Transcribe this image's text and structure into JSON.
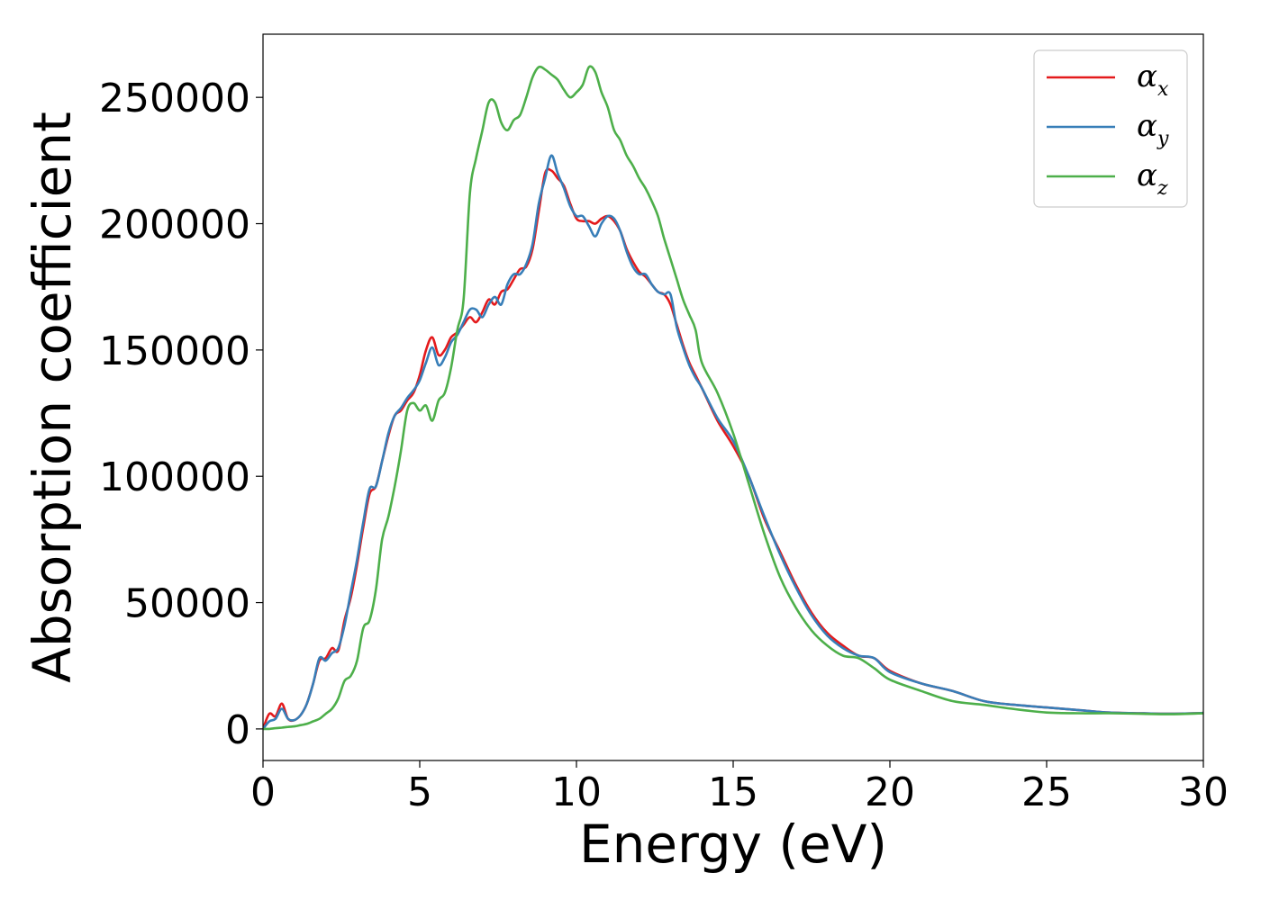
{
  "chart_data": {
    "type": "line",
    "title": "",
    "xlabel": "Energy (eV)",
    "ylabel": "Absorption coefficient",
    "xlim": [
      0,
      30
    ],
    "ylim": [
      -12500,
      275000
    ],
    "xticks": [
      "0",
      "5",
      "10",
      "15",
      "20",
      "25",
      "30"
    ],
    "yticks": [
      "0",
      "50000",
      "100000",
      "150000",
      "200000",
      "250000"
    ],
    "grid": false,
    "legend_position": "top-right",
    "series": [
      {
        "name": "α",
        "name_sub": "x",
        "color": "#e41a1c",
        "x": [
          0,
          0.2,
          0.4,
          0.6,
          0.8,
          1,
          1.2,
          1.4,
          1.6,
          1.8,
          2,
          2.2,
          2.4,
          2.6,
          2.8,
          3,
          3.2,
          3.4,
          3.6,
          3.8,
          4,
          4.2,
          4.4,
          4.6,
          4.8,
          5,
          5.2,
          5.4,
          5.6,
          5.8,
          6,
          6.2,
          6.4,
          6.6,
          6.8,
          7,
          7.2,
          7.4,
          7.6,
          7.8,
          8,
          8.2,
          8.4,
          8.6,
          8.8,
          9,
          9.2,
          9.4,
          9.6,
          9.8,
          10,
          10.2,
          10.4,
          10.6,
          10.8,
          11,
          11.2,
          11.4,
          11.6,
          11.8,
          12,
          12.2,
          12.4,
          12.6,
          12.8,
          13,
          13.2,
          13.4,
          13.6,
          13.8,
          14,
          14.5,
          15,
          15.5,
          16,
          16.5,
          17,
          17.5,
          18,
          18.5,
          19,
          19.5,
          20,
          21,
          22,
          23,
          24,
          25,
          26,
          27,
          28,
          29,
          30
        ],
        "values": [
          0,
          6000,
          5000,
          10000,
          4000,
          3500,
          5500,
          10000,
          18000,
          27000,
          28000,
          32000,
          31000,
          43000,
          52000,
          65000,
          80000,
          93000,
          96000,
          106000,
          116000,
          124000,
          126000,
          130000,
          133000,
          140000,
          150000,
          155000,
          148000,
          150000,
          155000,
          157000,
          160000,
          163000,
          161000,
          165000,
          170000,
          168000,
          173000,
          174000,
          178000,
          182000,
          183000,
          190000,
          205000,
          220000,
          221000,
          218000,
          215000,
          208000,
          202000,
          201000,
          201000,
          200000,
          202000,
          203000,
          201000,
          197000,
          190000,
          185000,
          181000,
          179000,
          176000,
          173000,
          172000,
          168000,
          160000,
          152000,
          145000,
          140000,
          135000,
          122000,
          112000,
          100000,
          83000,
          70000,
          57000,
          46000,
          38000,
          33000,
          29000,
          28000,
          23000,
          18000,
          15000,
          11000,
          9500,
          8500,
          7500,
          6500,
          6200,
          6000,
          6300
        ],
        "y_note": ""
      },
      {
        "name": "α",
        "name_sub": "y",
        "color": "#377eb8",
        "x": [
          0,
          0.2,
          0.4,
          0.6,
          0.8,
          1,
          1.2,
          1.4,
          1.6,
          1.8,
          2,
          2.2,
          2.4,
          2.6,
          2.8,
          3,
          3.2,
          3.4,
          3.6,
          3.8,
          4,
          4.2,
          4.4,
          4.6,
          4.8,
          5,
          5.2,
          5.4,
          5.6,
          5.8,
          6,
          6.2,
          6.4,
          6.6,
          6.8,
          7,
          7.2,
          7.4,
          7.6,
          7.8,
          8,
          8.2,
          8.4,
          8.6,
          8.8,
          9,
          9.2,
          9.4,
          9.6,
          9.8,
          10,
          10.2,
          10.4,
          10.6,
          10.8,
          11,
          11.2,
          11.4,
          11.6,
          11.8,
          12,
          12.2,
          12.4,
          12.6,
          12.8,
          13,
          13.2,
          13.4,
          13.6,
          13.8,
          14,
          14.5,
          15,
          15.5,
          16,
          16.5,
          17,
          17.5,
          18,
          18.5,
          19,
          19.5,
          20,
          21,
          22,
          23,
          24,
          25,
          26,
          27,
          28,
          29,
          30
        ],
        "values": [
          0,
          3000,
          4000,
          8000,
          4000,
          3500,
          5500,
          10000,
          18000,
          28000,
          27000,
          30000,
          32000,
          41000,
          54000,
          67000,
          82000,
          95000,
          96000,
          106000,
          117000,
          124000,
          127000,
          131000,
          134000,
          138000,
          145000,
          151000,
          144000,
          147000,
          153000,
          156000,
          161000,
          166000,
          166000,
          163000,
          168000,
          171000,
          168000,
          176000,
          180000,
          180000,
          184000,
          192000,
          208000,
          218000,
          227000,
          220000,
          214000,
          207000,
          203000,
          203000,
          199000,
          195000,
          200000,
          203000,
          202000,
          197000,
          189000,
          183000,
          180000,
          180000,
          176000,
          173000,
          172000,
          172000,
          159000,
          151000,
          144000,
          139000,
          135000,
          123000,
          114000,
          100000,
          84000,
          69000,
          56000,
          45000,
          37000,
          32000,
          29000,
          28000,
          22500,
          18000,
          15000,
          11000,
          9500,
          8500,
          7500,
          6500,
          6200,
          6000,
          6300
        ]
      },
      {
        "name": "α",
        "name_sub": "z",
        "color": "#4daf4a",
        "x": [
          0,
          0.2,
          0.4,
          0.6,
          0.8,
          1,
          1.2,
          1.4,
          1.6,
          1.8,
          2,
          2.2,
          2.4,
          2.6,
          2.8,
          3,
          3.2,
          3.4,
          3.6,
          3.8,
          4,
          4.2,
          4.4,
          4.6,
          4.8,
          5,
          5.2,
          5.4,
          5.6,
          5.8,
          6,
          6.2,
          6.4,
          6.6,
          6.8,
          7,
          7.2,
          7.4,
          7.6,
          7.8,
          8,
          8.2,
          8.4,
          8.6,
          8.8,
          9,
          9.2,
          9.4,
          9.6,
          9.8,
          10,
          10.2,
          10.4,
          10.6,
          10.8,
          11,
          11.2,
          11.4,
          11.6,
          11.8,
          12,
          12.2,
          12.4,
          12.6,
          12.8,
          13,
          13.2,
          13.4,
          13.6,
          13.8,
          14,
          14.5,
          15,
          15.5,
          16,
          16.5,
          17,
          17.5,
          18,
          18.5,
          19,
          19.5,
          20,
          21,
          22,
          23,
          24,
          25,
          26,
          27,
          28,
          29,
          30
        ],
        "values": [
          0,
          0,
          300,
          500,
          800,
          1000,
          1500,
          2000,
          3000,
          4000,
          6000,
          8000,
          12000,
          19000,
          21000,
          27000,
          40000,
          43000,
          55000,
          75000,
          84000,
          96000,
          110000,
          126000,
          129000,
          126000,
          128000,
          122000,
          130000,
          133000,
          143000,
          158000,
          170000,
          212000,
          226000,
          237000,
          248000,
          248000,
          240000,
          237000,
          241000,
          243000,
          250000,
          258000,
          262000,
          261000,
          259000,
          257000,
          253000,
          250000,
          252000,
          255000,
          262000,
          260000,
          252000,
          246000,
          237000,
          233000,
          227000,
          223000,
          218000,
          214000,
          209000,
          203000,
          194000,
          186000,
          178000,
          170000,
          164000,
          158000,
          145000,
          133000,
          117000,
          97000,
          77000,
          60000,
          48000,
          39000,
          33000,
          29000,
          28000,
          24000,
          19500,
          15000,
          11000,
          9500,
          7800,
          6500,
          6200,
          6200,
          6000,
          5800,
          6200
        ]
      }
    ]
  }
}
